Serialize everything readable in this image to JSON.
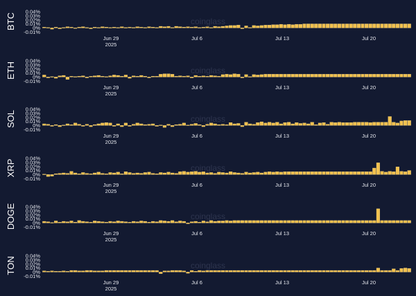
{
  "watermark": "coinglass",
  "colors": {
    "background": "#131a31",
    "bar": "#f2c14e",
    "bar_stroke": "#f7d98a",
    "text": "#e6e8ee",
    "zero_line": "#2a3250"
  },
  "chart_data": [
    {
      "type": "bar",
      "ylabel": "BTC",
      "ytick_labels": [
        "0.04%",
        "0.03%",
        "0.02%",
        "0.01%",
        "0%",
        "-0.01%"
      ],
      "ylim": [
        -0.013,
        0.045
      ],
      "xtick_labels": [
        "Jun 29\n2025",
        "Jul 6",
        "Jul 13",
        "Jul 20"
      ],
      "values": [
        0.002,
        0.001,
        -0.003,
        0.002,
        -0.002,
        0.001,
        0.003,
        0.002,
        -0.001,
        0.002,
        0.003,
        0.001,
        -0.002,
        0.002,
        0.001,
        0.003,
        0.002,
        0.001,
        0.002,
        0.001,
        0.003,
        0.001,
        0.002,
        0.001,
        0.003,
        0.002,
        0.001,
        0.003,
        0.002,
        0.001,
        0.004,
        0.003,
        0.004,
        0.001,
        0.004,
        0.003,
        0.002,
        0.003,
        0.002,
        0.003,
        0.001,
        0.002,
        0.003,
        0.001,
        0.004,
        0.003,
        0.004,
        0.005,
        0.006,
        0.006,
        0.007,
        -0.002,
        0.005,
        0.001,
        0.006,
        0.005,
        0.006,
        0.007,
        0.007,
        0.008,
        0.008,
        0.009,
        0.008,
        0.009,
        0.008,
        0.009,
        0.009,
        0.01,
        0.01,
        0.01,
        0.01,
        0.01,
        0.01,
        0.01,
        0.01,
        0.01,
        0.01,
        0.01,
        0.01,
        0.01,
        0.01,
        0.01,
        0.01,
        0.01,
        0.01,
        0.01,
        0.01,
        0.01,
        0.01,
        0.01,
        0.01,
        0.01,
        0.01,
        0.01,
        0.01
      ]
    },
    {
      "type": "bar",
      "ylabel": "ETH",
      "ytick_labels": [
        "0.04%",
        "0.03%",
        "0.02%",
        "0.01%",
        "0%",
        "-0.01%"
      ],
      "ylim": [
        -0.013,
        0.045
      ],
      "xtick_labels": [
        "Jun 29\n2025",
        "Jul 6",
        "Jul 13",
        "Jul 20"
      ],
      "values": [
        0.005,
        -0.002,
        0.001,
        -0.003,
        0.003,
        0.004,
        -0.006,
        0.002,
        0.001,
        0.002,
        0.003,
        -0.002,
        0.002,
        0.003,
        0.004,
        0.002,
        0.001,
        0.003,
        0.005,
        0.004,
        0.002,
        0.005,
        -0.003,
        0.003,
        0.002,
        0.004,
        0.002,
        -0.002,
        0.002,
        0.002,
        0.007,
        0.008,
        0.008,
        0.007,
        0.002,
        0.003,
        0.002,
        0.003,
        -0.002,
        0.004,
        0.002,
        0.003,
        0.002,
        0.004,
        0.003,
        0.002,
        0.006,
        0.007,
        0.006,
        0.008,
        0.007,
        -0.002,
        0.006,
        0.001,
        0.006,
        0.005,
        0.006,
        0.007,
        0.007,
        0.007,
        0.007,
        0.007,
        0.007,
        0.007,
        0.007,
        0.007,
        0.007,
        0.007,
        0.007,
        0.007,
        0.007,
        0.007,
        0.007,
        0.007,
        0.007,
        0.007,
        0.007,
        0.007,
        0.007,
        0.007,
        0.007,
        0.007,
        0.007,
        0.007,
        0.007,
        0.007,
        0.007,
        0.007,
        0.007,
        0.007,
        0.007,
        0.007,
        0.007,
        0.007,
        0.007
      ]
    },
    {
      "type": "bar",
      "ylabel": "SOL",
      "ytick_labels": [
        "0.04%",
        "0.03%",
        "0.02%",
        "0.01%",
        "0%",
        "-0.01%"
      ],
      "ylim": [
        -0.013,
        0.045
      ],
      "xtick_labels": [
        "Jun 29\n2025",
        "Jul 6",
        "Jul 13",
        "Jul 20"
      ],
      "values": [
        0.004,
        0.003,
        -0.002,
        0.002,
        -0.003,
        0.001,
        0.004,
        0.002,
        0.006,
        0.003,
        -0.002,
        0.003,
        -0.003,
        0.002,
        0.004,
        0.006,
        0.007,
        0.006,
        -0.002,
        0.004,
        -0.003,
        0.006,
        -0.002,
        0.003,
        0.006,
        0.004,
        0.002,
        0.003,
        0.004,
        -0.002,
        0.001,
        -0.005,
        0.003,
        -0.003,
        0.002,
        0.003,
        0.006,
        0.001,
        0.003,
        0.005,
        0.002,
        -0.003,
        0.003,
        0.006,
        0.004,
        0.002,
        0.003,
        0.002,
        0.007,
        0.004,
        0.005,
        -0.003,
        0.008,
        0.004,
        0.003,
        0.007,
        0.009,
        0.006,
        0.008,
        0.006,
        0.008,
        0.004,
        0.007,
        0.008,
        0.004,
        0.007,
        0.005,
        0.006,
        0.004,
        0.008,
        0.002,
        0.006,
        0.007,
        0.003,
        0.008,
        0.007,
        0.008,
        0.007,
        0.007,
        0.007,
        0.008,
        0.008,
        0.008,
        0.008,
        0.007,
        0.008,
        0.008,
        0.008,
        0.008,
        0.022,
        0.008,
        0.006,
        0.011,
        0.012,
        0.012
      ]
    },
    {
      "type": "bar",
      "ylabel": "XRP",
      "ytick_labels": [
        "0.04%",
        "0.03%",
        "0.02%",
        "0.01%",
        "0%",
        "-0.01%"
      ],
      "ylim": [
        -0.013,
        0.045
      ],
      "xtick_labels": [
        "Jun 29\n2025",
        "Jul 6",
        "Jul 13",
        "Jul 20"
      ],
      "values": [
        0.001,
        -0.005,
        -0.004,
        0.002,
        0.003,
        0.004,
        0.003,
        0.008,
        0.004,
        0.002,
        0.005,
        0.003,
        0.002,
        0.004,
        0.006,
        0.003,
        0.002,
        0.005,
        0.004,
        0.006,
        0.002,
        0.007,
        0.005,
        0.003,
        0.004,
        0.003,
        0.005,
        0.006,
        0.003,
        0.002,
        0.005,
        0.004,
        0.006,
        0.004,
        0.003,
        0.007,
        0.008,
        0.006,
        0.007,
        0.008,
        0.006,
        0.007,
        0.004,
        0.005,
        0.003,
        0.006,
        0.005,
        0.004,
        0.007,
        0.005,
        0.004,
        0.003,
        0.006,
        0.004,
        0.005,
        0.006,
        0.004,
        0.006,
        0.007,
        0.006,
        0.007,
        0.006,
        0.007,
        0.007,
        0.007,
        0.007,
        0.007,
        0.007,
        0.007,
        0.007,
        0.007,
        0.007,
        0.007,
        0.007,
        0.007,
        0.007,
        0.007,
        0.007,
        0.007,
        0.007,
        0.007,
        0.007,
        0.007,
        0.007,
        0.007,
        0.016,
        0.029,
        0.008,
        0.006,
        0.008,
        0.007,
        0.019,
        0.008,
        0.007,
        0.01
      ]
    },
    {
      "type": "bar",
      "ylabel": "DOGE",
      "ytick_labels": [
        "0.04%",
        "0.03%",
        "0.02%",
        "0.01%",
        "0%",
        "-0.01%"
      ],
      "ylim": [
        -0.013,
        0.045
      ],
      "xtick_labels": [
        "Jun 29\n2025",
        "Jul 6",
        "Jul 13",
        "Jul 20"
      ],
      "values": [
        0.004,
        0.003,
        0.001,
        0.005,
        0.002,
        0.004,
        0.003,
        0.005,
        0.002,
        0.006,
        0.004,
        0.003,
        0.002,
        0.005,
        0.004,
        0.003,
        0.002,
        0.004,
        0.003,
        0.005,
        0.004,
        0.003,
        0.002,
        0.004,
        0.003,
        0.005,
        0.004,
        0.002,
        0.004,
        0.003,
        0.006,
        0.005,
        0.004,
        0.006,
        0.003,
        0.005,
        0.004,
        -0.002,
        0.003,
        0.004,
        0.002,
        0.005,
        0.003,
        0.006,
        0.004,
        0.005,
        0.005,
        0.006,
        0.005,
        0.006,
        0.006,
        0.006,
        0.006,
        0.006,
        0.006,
        0.006,
        0.006,
        0.006,
        0.006,
        0.006,
        0.006,
        0.006,
        0.006,
        0.006,
        0.006,
        0.006,
        0.006,
        0.006,
        0.006,
        0.006,
        0.006,
        0.006,
        0.006,
        0.006,
        0.006,
        0.006,
        0.006,
        0.006,
        0.006,
        0.006,
        0.006,
        0.006,
        0.006,
        0.006,
        0.006,
        0.006,
        0.035,
        0.006,
        0.006,
        0.006,
        0.006,
        0.006,
        0.006,
        0.006,
        0.006
      ]
    },
    {
      "type": "bar",
      "ylabel": "TON",
      "ytick_labels": [
        "0.04%",
        "0.03%",
        "0.02%",
        "0.01%",
        "0%",
        "-0.01%"
      ],
      "ylim": [
        -0.013,
        0.045
      ],
      "xtick_labels": [
        "Jun 29\n2025",
        "Jul 6",
        "Jul 13",
        "Jul 20"
      ],
      "values": [
        0.003,
        0.002,
        0.003,
        0.002,
        0.002,
        0.003,
        0.002,
        0.004,
        0.004,
        0.003,
        0.003,
        0.004,
        0.004,
        0.003,
        0.003,
        0.003,
        0.004,
        0.004,
        0.004,
        0.004,
        0.004,
        0.004,
        0.004,
        0.004,
        0.004,
        0.004,
        0.004,
        0.004,
        0.004,
        0.004,
        -0.004,
        0.003,
        0.003,
        0.004,
        0.004,
        0.004,
        0.003,
        -0.003,
        0.004,
        0.002,
        0.004,
        0.003,
        0.004,
        0.004,
        0.004,
        0.004,
        0.004,
        0.004,
        0.004,
        0.004,
        0.004,
        0.004,
        0.004,
        0.004,
        0.004,
        0.004,
        0.004,
        0.004,
        0.004,
        0.004,
        0.004,
        0.004,
        0.004,
        0.004,
        0.004,
        0.004,
        0.004,
        0.004,
        0.004,
        0.004,
        0.004,
        0.004,
        0.004,
        0.004,
        0.004,
        0.004,
        0.004,
        0.004,
        0.004,
        0.004,
        0.004,
        0.004,
        0.004,
        0.004,
        0.004,
        0.004,
        0.01,
        0.004,
        0.004,
        0.004,
        0.008,
        0.004,
        0.009,
        0.01,
        0.009
      ]
    }
  ]
}
